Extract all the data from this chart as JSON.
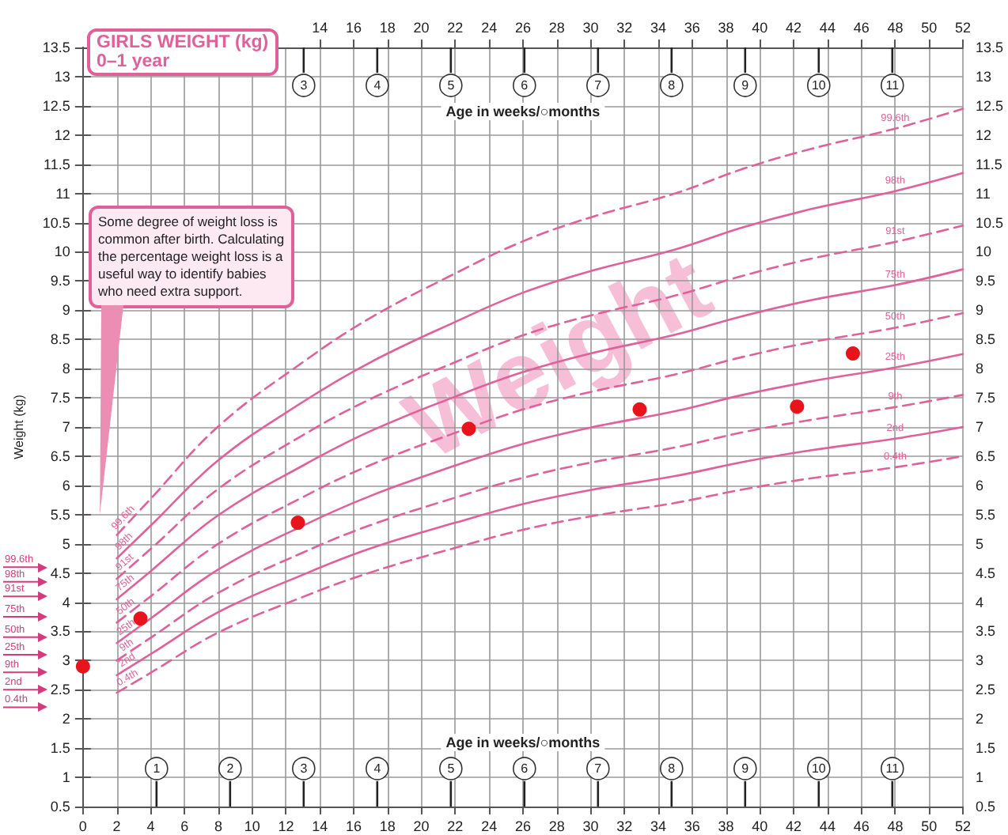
{
  "chart_data": {
    "type": "line",
    "title": "GIRLS WEIGHT (kg)",
    "subtitle": "0–1 year",
    "xlabel": "Age in weeks/○months",
    "x2label": "Age in weeks/○months",
    "ylabel": "Weight (kg)",
    "x": [
      2,
      4,
      8,
      13,
      17,
      22,
      26,
      30,
      35,
      39,
      43,
      48,
      52
    ],
    "series": [
      {
        "name": "99.6th",
        "color": "#e0619a",
        "line_style": "dashed",
        "values": [
          5.15,
          5.77,
          7.01,
          8.11,
          8.87,
          9.63,
          10.18,
          10.59,
          11.0,
          11.42,
          11.76,
          12.11,
          12.45
        ]
      },
      {
        "name": "98th",
        "color": "#e0619a",
        "line_style": "solid",
        "values": [
          4.75,
          5.31,
          6.43,
          7.43,
          8.11,
          8.8,
          9.3,
          9.67,
          10.04,
          10.42,
          10.73,
          11.04,
          11.35
        ]
      },
      {
        "name": "91st",
        "color": "#e0619a",
        "line_style": "dashed",
        "values": [
          4.4,
          4.91,
          5.94,
          6.86,
          7.48,
          8.11,
          8.57,
          8.91,
          9.25,
          9.59,
          9.88,
          10.17,
          10.45
        ]
      },
      {
        "name": "75th",
        "color": "#e0619a",
        "line_style": "solid",
        "values": [
          4.05,
          4.53,
          5.49,
          6.34,
          6.93,
          7.52,
          7.94,
          8.26,
          8.58,
          8.9,
          9.17,
          9.43,
          9.7
        ]
      },
      {
        "name": "50th",
        "color": "#e0619a",
        "line_style": "dashed",
        "values": [
          3.65,
          4.1,
          5.0,
          5.8,
          6.35,
          6.9,
          7.3,
          7.6,
          7.9,
          8.2,
          8.45,
          8.7,
          8.95
        ]
      },
      {
        "name": "25th",
        "color": "#e0619a",
        "line_style": "solid",
        "values": [
          3.3,
          3.72,
          4.56,
          5.31,
          5.82,
          6.34,
          6.71,
          6.99,
          7.27,
          7.55,
          7.78,
          8.02,
          8.25
        ]
      },
      {
        "name": "9th",
        "color": "#e0619a",
        "line_style": "dashed",
        "values": [
          3.0,
          3.39,
          4.16,
          4.85,
          5.32,
          5.79,
          6.13,
          6.39,
          6.65,
          6.91,
          7.12,
          7.34,
          7.55
        ]
      },
      {
        "name": "2nd",
        "color": "#e0619a",
        "line_style": "solid",
        "values": [
          2.75,
          3.11,
          3.83,
          4.47,
          4.92,
          5.36,
          5.68,
          5.92,
          6.16,
          6.4,
          6.6,
          6.8,
          7.0
        ]
      },
      {
        "name": "0.4th",
        "color": "#e0619a",
        "line_style": "dashed",
        "values": [
          2.45,
          2.79,
          3.48,
          4.09,
          4.51,
          4.93,
          5.24,
          5.47,
          5.7,
          5.93,
          6.12,
          6.31,
          6.5
        ]
      },
      {
        "type": "scatter",
        "marker": "circle",
        "color": "#e8141c",
        "x": [
          0,
          3.4,
          12.7,
          22.8,
          32.9,
          42.2,
          45.5
        ],
        "values": [
          2.9,
          3.72,
          5.36,
          6.97,
          7.3,
          7.35,
          8.26
        ]
      }
    ],
    "marker": "none",
    "grid": true,
    "legend": false,
    "xlim": [
      0,
      52
    ],
    "xticks": [
      0,
      2,
      4,
      6,
      8,
      10,
      12,
      14,
      16,
      18,
      20,
      22,
      24,
      26,
      28,
      30,
      32,
      34,
      36,
      38,
      40,
      42,
      44,
      46,
      48,
      50,
      52
    ],
    "x2lim": [
      0,
      52
    ],
    "x2ticks": [
      14,
      16,
      18,
      20,
      22,
      24,
      26,
      28,
      30,
      32,
      34,
      36,
      38,
      40,
      42,
      44,
      46,
      48,
      50,
      52
    ],
    "ref_lines": [
      {
        "axis": "y",
        "value": 4.6,
        "label": "99.6th",
        "color": "#d43b7d"
      },
      {
        "axis": "y",
        "value": 4.35,
        "label": "98th",
        "color": "#d43b7d"
      },
      {
        "axis": "y",
        "value": 4.1,
        "label": "91st",
        "color": "#d43b7d"
      },
      {
        "axis": "y",
        "value": 3.75,
        "label": "75th",
        "color": "#d43b7d"
      },
      {
        "axis": "y",
        "value": 3.4,
        "label": "50th",
        "color": "#d43b7d"
      },
      {
        "axis": "y",
        "value": 3.1,
        "label": "25th",
        "color": "#d43b7d"
      },
      {
        "axis": "y",
        "value": 2.8,
        "label": "9th",
        "color": "#d43b7d"
      },
      {
        "axis": "y",
        "value": 2.5,
        "label": "2nd",
        "color": "#d43b7d"
      },
      {
        "axis": "y",
        "value": 2.2,
        "label": "0.4th",
        "color": "#d43b7d"
      }
    ],
    "ylim": [
      0.5,
      13.5
    ],
    "yticks": [
      0.5,
      1,
      1.5,
      2,
      2.5,
      3,
      3.5,
      4,
      4.5,
      5,
      5.5,
      6,
      6.5,
      7,
      7.5,
      8,
      8.5,
      9,
      9.5,
      10,
      10.5,
      11,
      11.5,
      12,
      12.5,
      13,
      13.5
    ],
    "y2lim": [
      0.5,
      13.5
    ],
    "y2ticks": [
      0.5,
      1,
      1.5,
      2,
      2.5,
      3,
      3.5,
      4,
      4.5,
      5,
      5.5,
      6,
      6.5,
      7,
      7.5,
      8,
      8.5,
      9,
      9.5,
      10,
      10.5,
      11,
      11.5,
      12,
      12.5,
      13,
      13.5
    ],
    "annotations": [
      "Some degree of weight loss is common after birth. Calculating the percentage weight loss is a useful way to identify babies who need extra support.",
      "Weight",
      "1",
      "2",
      "3",
      "4",
      "5",
      "6",
      "7",
      "8",
      "9",
      "10",
      "11",
      "3",
      "4",
      "5",
      "6",
      "7",
      "8",
      "9",
      "10",
      "11"
    ]
  }
}
